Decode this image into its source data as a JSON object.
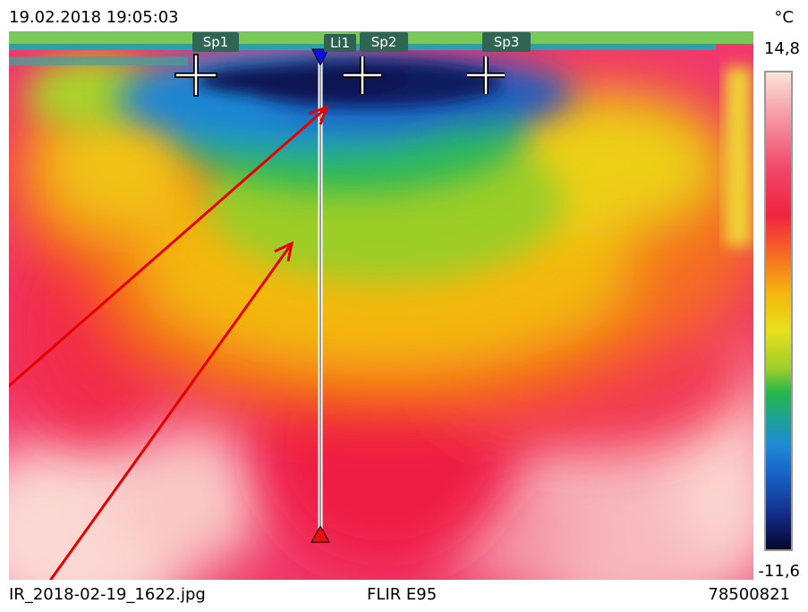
{
  "header": {
    "timestamp": "19.02.2018 19:05:03",
    "unit": "°C"
  },
  "scale": {
    "max": "14,8",
    "min": "-11,6"
  },
  "markers": {
    "spots": [
      {
        "label": "Sp1"
      },
      {
        "label": "Sp2"
      },
      {
        "label": "Sp3"
      }
    ],
    "line": {
      "label": "Li1"
    }
  },
  "footer": {
    "file_name": "IR_2018-02-19_1622.jpg",
    "camera_model": "FLIR E95",
    "serial": "78500821"
  },
  "palette": {
    "cold": "#050a2a",
    "hot": "#fbe3da",
    "marker_bg": "#2f6552",
    "arrow": "#e60000"
  }
}
